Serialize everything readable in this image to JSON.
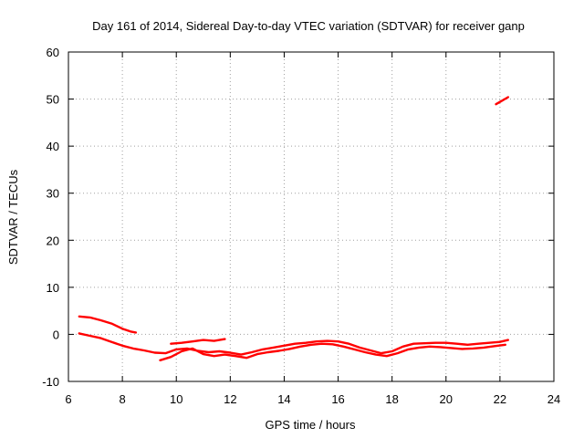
{
  "chart_data": {
    "type": "line",
    "title": "Day 161 of 2014, Sidereal Day-to-day VTEC variation (SDTVAR) for receiver ganp",
    "xlabel": "GPS time / hours",
    "ylabel": "SDTVAR / TECUs",
    "xlim": [
      6,
      24
    ],
    "ylim": [
      -10,
      60
    ],
    "x_ticks": [
      6,
      8,
      10,
      12,
      14,
      16,
      18,
      20,
      22,
      24
    ],
    "y_ticks": [
      -10,
      0,
      10,
      20,
      30,
      40,
      50,
      60
    ],
    "grid": true,
    "series_color": "#ff0000",
    "series": [
      {
        "name": "track-upper-early",
        "x": [
          6.4,
          6.8,
          7.2,
          7.6,
          8.0,
          8.3,
          8.5
        ],
        "y": [
          3.8,
          3.6,
          3.0,
          2.3,
          1.2,
          0.6,
          0.4
        ]
      },
      {
        "name": "track-main",
        "x": [
          6.4,
          6.8,
          7.2,
          7.6,
          8.0,
          8.4,
          8.8,
          9.2,
          9.6,
          10.0,
          10.4,
          10.8,
          11.2,
          11.6,
          12.0,
          12.4,
          12.8,
          13.2,
          13.6,
          14.0,
          14.4,
          14.8,
          15.2,
          15.6,
          16.0,
          16.4,
          16.8,
          17.2,
          17.6,
          18.0,
          18.4,
          18.8,
          19.2,
          19.6,
          20.0,
          20.4,
          20.8,
          21.2,
          21.6,
          22.0,
          22.3
        ],
        "y": [
          0.2,
          -0.3,
          -0.8,
          -1.6,
          -2.4,
          -3.0,
          -3.4,
          -3.9,
          -4.0,
          -3.2,
          -3.0,
          -3.5,
          -3.8,
          -3.6,
          -3.9,
          -4.3,
          -3.8,
          -3.2,
          -2.8,
          -2.4,
          -2.0,
          -1.8,
          -1.5,
          -1.4,
          -1.5,
          -2.0,
          -2.8,
          -3.4,
          -4.0,
          -3.6,
          -2.6,
          -2.0,
          -1.9,
          -1.8,
          -1.8,
          -2.0,
          -2.2,
          -2.0,
          -1.8,
          -1.6,
          -1.2
        ]
      },
      {
        "name": "track-lower",
        "x": [
          9.4,
          9.8,
          10.2,
          10.6,
          11.0,
          11.4,
          11.8,
          12.2,
          12.6,
          13.0,
          13.4,
          13.8,
          14.2,
          14.6,
          15.0,
          15.4,
          15.8,
          16.2,
          16.6,
          17.0,
          17.4,
          17.8,
          18.2,
          18.6,
          19.0,
          19.4,
          19.8,
          20.2,
          20.6,
          21.0,
          21.4,
          21.8,
          22.2
        ],
        "y": [
          -5.5,
          -4.8,
          -3.6,
          -3.0,
          -4.2,
          -4.6,
          -4.3,
          -4.6,
          -5.0,
          -4.2,
          -3.8,
          -3.5,
          -3.1,
          -2.6,
          -2.2,
          -2.0,
          -2.1,
          -2.6,
          -3.2,
          -3.8,
          -4.3,
          -4.6,
          -4.0,
          -3.2,
          -2.8,
          -2.6,
          -2.7,
          -2.9,
          -3.1,
          -3.0,
          -2.8,
          -2.5,
          -2.2
        ]
      },
      {
        "name": "track-upper-mid",
        "x": [
          9.8,
          10.2,
          10.6,
          11.0,
          11.4,
          11.8
        ],
        "y": [
          -2.0,
          -1.8,
          -1.5,
          -1.2,
          -1.4,
          -1.0
        ]
      },
      {
        "name": "track-outlier",
        "x": [
          21.85,
          22.0,
          22.15,
          22.3
        ],
        "y": [
          48.9,
          49.4,
          49.9,
          50.4
        ]
      }
    ]
  }
}
